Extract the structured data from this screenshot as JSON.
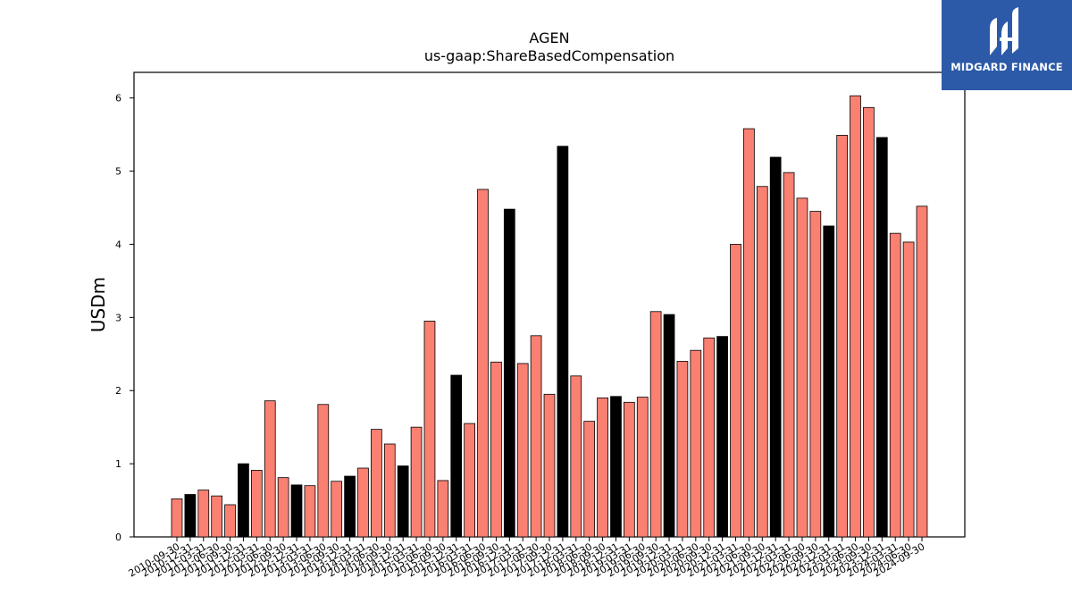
{
  "chart_data": {
    "type": "bar",
    "title": "AGEN",
    "subtitle": "us-gaap:ShareBasedCompensation",
    "xlabel": "",
    "ylabel": "USDm",
    "ylim": [
      0,
      6.35
    ],
    "yticks": [
      0,
      1,
      2,
      3,
      4,
      5,
      6
    ],
    "grid": false,
    "colors": {
      "quarter": "#fa8072",
      "fiscal_year_end": "#000000",
      "edge": "#000000"
    },
    "categories": [
      "2010-09-30",
      "2010-12-31",
      "2011-03-31",
      "2011-06-30",
      "2011-09-30",
      "2011-12-31",
      "2012-03-31",
      "2012-06-30",
      "2012-09-30",
      "2012-12-31",
      "2013-03-31",
      "2013-06-30",
      "2013-09-30",
      "2013-12-31",
      "2014-03-31",
      "2014-06-30",
      "2014-09-30",
      "2014-12-31",
      "2015-03-31",
      "2015-06-30",
      "2015-09-30",
      "2015-12-31",
      "2016-03-31",
      "2016-06-30",
      "2016-09-30",
      "2016-12-31",
      "2017-03-31",
      "2017-06-30",
      "2017-09-30",
      "2017-12-31",
      "2018-03-31",
      "2018-06-30",
      "2018-09-30",
      "2018-12-31",
      "2019-03-31",
      "2019-06-30",
      "2019-09-30",
      "2019-12-31",
      "2020-03-31",
      "2020-06-30",
      "2020-09-30",
      "2020-12-31",
      "2021-03-31",
      "2021-06-30",
      "2021-09-30",
      "2021-12-31",
      "2022-03-31",
      "2022-06-30",
      "2022-09-30",
      "2022-12-31",
      "2023-03-31",
      "2023-06-30",
      "2023-09-30",
      "2023-12-31",
      "2024-03-31",
      "2024-06-30",
      "2024-09-30"
    ],
    "values": [
      0.52,
      0.58,
      0.64,
      0.56,
      0.44,
      1.0,
      0.91,
      1.86,
      0.81,
      0.71,
      0.7,
      1.81,
      0.76,
      0.83,
      0.94,
      1.47,
      1.27,
      0.97,
      1.5,
      2.95,
      0.77,
      2.21,
      1.55,
      4.75,
      2.39,
      4.48,
      2.37,
      2.75,
      1.95,
      5.34,
      2.2,
      1.58,
      1.9,
      1.92,
      1.84,
      1.91,
      3.08,
      3.04,
      2.4,
      2.55,
      2.72,
      2.74,
      4.0,
      5.58,
      4.79,
      5.19,
      4.98,
      4.63,
      4.45,
      4.25,
      5.49,
      6.03,
      5.87,
      5.46,
      4.15,
      4.03,
      4.52
    ],
    "fiscal_year_end": [
      false,
      true,
      false,
      false,
      false,
      true,
      false,
      false,
      false,
      true,
      false,
      false,
      false,
      true,
      false,
      false,
      false,
      true,
      false,
      false,
      false,
      true,
      false,
      false,
      false,
      true,
      false,
      false,
      false,
      true,
      false,
      false,
      false,
      true,
      false,
      false,
      false,
      true,
      false,
      false,
      false,
      true,
      false,
      false,
      false,
      true,
      false,
      false,
      false,
      true,
      false,
      false,
      false,
      true,
      false,
      false,
      false
    ]
  },
  "logo": {
    "text": "MIDGARD FINANCE",
    "icon": "midgard-mark-icon",
    "background": "#2c5aa8"
  }
}
